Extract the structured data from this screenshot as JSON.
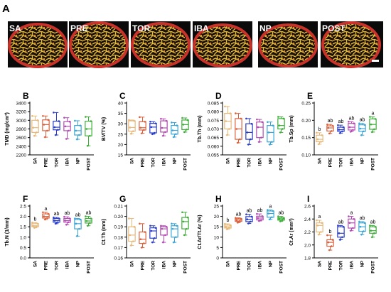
{
  "figure": {
    "panel_a": {
      "letter": "A",
      "images": [
        {
          "label": "SA"
        },
        {
          "label": "PRE"
        },
        {
          "label": "TOR"
        },
        {
          "label": "IBA"
        },
        {
          "label": "NP"
        },
        {
          "label": "POST"
        }
      ]
    }
  },
  "colors": {
    "SA": "#e9b97a",
    "PRE": "#d9623e",
    "TOR": "#2b3ec6",
    "IBA": "#b44bb2",
    "NP": "#3ba6d6",
    "POST": "#3fae3a",
    "scan_outer": "#c9322a",
    "scan_inner": "#e8c23a",
    "background": "#ffffff"
  },
  "chart_data": [
    {
      "panel": "B",
      "type": "box",
      "ylabel": "TMD (mg/cm³)",
      "categories": [
        "SA",
        "PRE",
        "TOR",
        "IBA",
        "NP",
        "POST"
      ],
      "ylim": [
        2200,
        3400
      ],
      "yticks": [
        2200,
        2400,
        2600,
        2800,
        3000,
        3200,
        3400
      ],
      "boxes": [
        {
          "min": 2640,
          "q1": 2720,
          "median": 2830,
          "q3": 3000,
          "max": 3100
        },
        {
          "min": 2610,
          "q1": 2760,
          "median": 2900,
          "q3": 3010,
          "max": 3100
        },
        {
          "min": 2660,
          "q1": 2780,
          "median": 2840,
          "q3": 2980,
          "max": 3180
        },
        {
          "min": 2570,
          "q1": 2760,
          "median": 2860,
          "q3": 2970,
          "max": 3060
        },
        {
          "min": 2560,
          "q1": 2660,
          "median": 2760,
          "q3": 2880,
          "max": 2990
        },
        {
          "min": 2410,
          "q1": 2640,
          "median": 2800,
          "q3": 2980,
          "max": 3080
        }
      ],
      "letters": [
        "",
        "",
        "",
        "",
        "",
        ""
      ]
    },
    {
      "panel": "C",
      "type": "box",
      "ylabel": "BV/TV (%)",
      "categories": [
        "SA",
        "PRE",
        "TOR",
        "IBA",
        "NP",
        "POST"
      ],
      "ylim": [
        15,
        40
      ],
      "yticks": [
        15,
        20,
        25,
        30,
        35,
        40
      ],
      "boxes": [
        {
          "min": 25.2,
          "q1": 26.4,
          "median": 28.2,
          "q3": 31.4,
          "max": 31.8
        },
        {
          "min": 25.4,
          "q1": 27.0,
          "median": 28.1,
          "q3": 31.0,
          "max": 33.2
        },
        {
          "min": 25.0,
          "q1": 25.6,
          "median": 28.4,
          "q3": 30.2,
          "max": 31.0
        },
        {
          "min": 24.2,
          "q1": 26.0,
          "median": 28.0,
          "q3": 31.4,
          "max": 32.4
        },
        {
          "min": 23.6,
          "q1": 25.0,
          "median": 26.8,
          "q3": 29.2,
          "max": 30.6
        },
        {
          "min": 26.0,
          "q1": 27.2,
          "median": 29.6,
          "q3": 31.8,
          "max": 32.8
        }
      ],
      "letters": [
        "",
        "",
        "",
        "",
        "",
        ""
      ]
    },
    {
      "panel": "D",
      "type": "box",
      "ylabel": "Tb.Th (mm)",
      "categories": [
        "SA",
        "PRE",
        "TOR",
        "IBA",
        "NP",
        "POST"
      ],
      "ylim": [
        0.055,
        0.085
      ],
      "yticks": [
        0.055,
        0.06,
        0.065,
        0.07,
        0.075,
        0.08,
        0.085
      ],
      "boxes": [
        {
          "min": 0.0665,
          "q1": 0.07,
          "median": 0.0745,
          "q3": 0.079,
          "max": 0.083
        },
        {
          "min": 0.062,
          "q1": 0.064,
          "median": 0.07,
          "q3": 0.076,
          "max": 0.079
        },
        {
          "min": 0.061,
          "q1": 0.064,
          "median": 0.068,
          "q3": 0.073,
          "max": 0.076
        },
        {
          "min": 0.0625,
          "q1": 0.065,
          "median": 0.071,
          "q3": 0.074,
          "max": 0.0755
        },
        {
          "min": 0.061,
          "q1": 0.0625,
          "median": 0.068,
          "q3": 0.072,
          "max": 0.074
        },
        {
          "min": 0.068,
          "q1": 0.07,
          "median": 0.072,
          "q3": 0.076,
          "max": 0.077
        }
      ],
      "letters": [
        "",
        "",
        "",
        "",
        "",
        ""
      ]
    },
    {
      "panel": "E",
      "type": "box",
      "ylabel": "Tb.Sp (mm)",
      "categories": [
        "SA",
        "PRE",
        "TOR",
        "IBA",
        "NP",
        "POST"
      ],
      "ylim": [
        0.1,
        0.25
      ],
      "yticks": [
        0.1,
        0.15,
        0.2,
        0.25
      ],
      "boxes": [
        {
          "min": 0.131,
          "q1": 0.138,
          "median": 0.145,
          "q3": 0.157,
          "max": 0.164
        },
        {
          "min": 0.162,
          "q1": 0.169,
          "median": 0.178,
          "q3": 0.184,
          "max": 0.188
        },
        {
          "min": 0.163,
          "q1": 0.168,
          "median": 0.173,
          "q3": 0.18,
          "max": 0.186
        },
        {
          "min": 0.167,
          "q1": 0.172,
          "median": 0.18,
          "q3": 0.191,
          "max": 0.196
        },
        {
          "min": 0.157,
          "q1": 0.168,
          "median": 0.176,
          "q3": 0.187,
          "max": 0.191
        },
        {
          "min": 0.166,
          "q1": 0.174,
          "median": 0.188,
          "q3": 0.204,
          "max": 0.21
        }
      ],
      "letters": [
        "b",
        "ab",
        "ab",
        "ab",
        "ab",
        "a"
      ]
    },
    {
      "panel": "F",
      "type": "box",
      "ylabel": "Tb.N (1/mm)",
      "categories": [
        "SA",
        "PRE",
        "TOR",
        "IBA",
        "NP",
        "POST"
      ],
      "ylim": [
        0.0,
        2.5
      ],
      "yticks": [
        0.0,
        0.5,
        1.0,
        1.5,
        2.0,
        2.5
      ],
      "boxes": [
        {
          "min": 1.45,
          "q1": 1.5,
          "median": 1.55,
          "q3": 1.65,
          "max": 1.7
        },
        {
          "min": 1.85,
          "q1": 1.92,
          "median": 2.0,
          "q3": 2.12,
          "max": 2.2
        },
        {
          "min": 1.65,
          "q1": 1.72,
          "median": 1.8,
          "q3": 1.9,
          "max": 1.95
        },
        {
          "min": 1.6,
          "q1": 1.72,
          "median": 1.8,
          "q3": 1.9,
          "max": 1.98
        },
        {
          "min": 1.05,
          "q1": 1.4,
          "median": 1.65,
          "q3": 1.85,
          "max": 1.9
        },
        {
          "min": 1.55,
          "q1": 1.68,
          "median": 1.78,
          "q3": 1.9,
          "max": 2.0
        }
      ],
      "letters": [
        "b",
        "a",
        "ab",
        "ab",
        "ab",
        "ab"
      ]
    },
    {
      "panel": "G",
      "type": "box",
      "ylabel": "Ct.Th (mm)",
      "categories": [
        "SA",
        "PRE",
        "TOR",
        "IBA",
        "NP",
        "POST"
      ],
      "ylim": [
        0.16,
        0.21
      ],
      "yticks": [
        0.16,
        0.17,
        0.18,
        0.19,
        0.2,
        0.21
      ],
      "boxes": [
        {
          "min": 0.172,
          "q1": 0.176,
          "median": 0.182,
          "q3": 0.19,
          "max": 0.198
        },
        {
          "min": 0.17,
          "q1": 0.174,
          "median": 0.178,
          "q3": 0.185,
          "max": 0.193
        },
        {
          "min": 0.175,
          "q1": 0.179,
          "median": 0.186,
          "q3": 0.189,
          "max": 0.191
        },
        {
          "min": 0.175,
          "q1": 0.182,
          "median": 0.188,
          "q3": 0.19,
          "max": 0.191
        },
        {
          "min": 0.175,
          "q1": 0.18,
          "median": 0.188,
          "q3": 0.191,
          "max": 0.193
        },
        {
          "min": 0.182,
          "q1": 0.188,
          "median": 0.195,
          "q3": 0.199,
          "max": 0.204
        }
      ],
      "letters": [
        "",
        "",
        "",
        "",
        "",
        ""
      ]
    },
    {
      "panel": "H",
      "type": "box",
      "ylabel": "Ct.Ar/Tt.Ar (%)",
      "categories": [
        "SA",
        "PRE",
        "TOR",
        "IBA",
        "NP",
        "POST"
      ],
      "ylim": [
        0,
        25
      ],
      "yticks": [
        0,
        5,
        10,
        15,
        20,
        25
      ],
      "boxes": [
        {
          "min": 13.8,
          "q1": 14.4,
          "median": 15.0,
          "q3": 15.8,
          "max": 16.4
        },
        {
          "min": 17.0,
          "q1": 17.6,
          "median": 18.2,
          "q3": 18.9,
          "max": 19.3
        },
        {
          "min": 16.6,
          "q1": 17.5,
          "median": 18.6,
          "q3": 19.9,
          "max": 21.0
        },
        {
          "min": 17.8,
          "q1": 18.3,
          "median": 19.2,
          "q3": 20.1,
          "max": 21.2
        },
        {
          "min": 18.6,
          "q1": 19.6,
          "median": 21.4,
          "q3": 22.6,
          "max": 23.1
        },
        {
          "min": 17.6,
          "q1": 18.2,
          "median": 18.8,
          "q3": 19.3,
          "max": 20.0
        }
      ],
      "letters": [
        "b",
        "ab",
        "ab",
        "ab",
        "a",
        "ab"
      ]
    },
    {
      "panel": "I",
      "type": "box",
      "ylabel": "Ct.Ar (mm²)",
      "categories": [
        "SA",
        "PRE",
        "TOR",
        "IBA",
        "NP",
        "POST"
      ],
      "ylim": [
        1.8,
        2.6
      ],
      "yticks": [
        1.8,
        2.0,
        2.2,
        2.4,
        2.6
      ],
      "boxes": [
        {
          "min": 2.16,
          "q1": 2.2,
          "median": 2.3,
          "q3": 2.34,
          "max": 2.38
        },
        {
          "min": 1.92,
          "q1": 1.98,
          "median": 2.04,
          "q3": 2.08,
          "max": 2.15
        },
        {
          "min": 2.08,
          "q1": 2.12,
          "median": 2.18,
          "q3": 2.28,
          "max": 2.3
        },
        {
          "min": 2.22,
          "q1": 2.26,
          "median": 2.34,
          "q3": 2.4,
          "max": 2.44
        },
        {
          "min": 2.16,
          "q1": 2.21,
          "median": 2.28,
          "q3": 2.34,
          "max": 2.36
        },
        {
          "min": 2.12,
          "q1": 2.18,
          "median": 2.22,
          "q3": 2.28,
          "max": 2.3
        }
      ],
      "letters": [
        "a",
        "b",
        "ab",
        "a",
        "ab",
        "ab"
      ]
    }
  ]
}
